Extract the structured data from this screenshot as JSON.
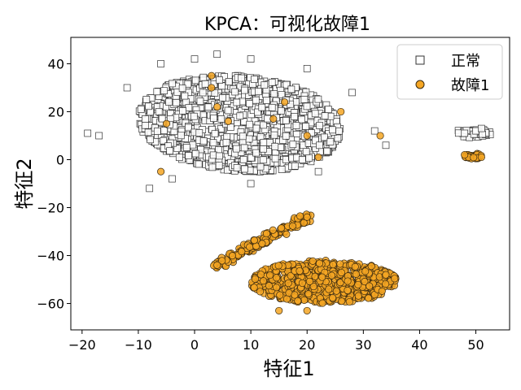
{
  "chart_data": {
    "type": "scatter",
    "title": "KPCA：可视化故障1",
    "xlabel": "特征1",
    "ylabel": "特征2",
    "xlim": [
      -22,
      56
    ],
    "ylim": [
      -71,
      51
    ],
    "xticks": [
      -20,
      -10,
      0,
      10,
      20,
      30,
      40,
      50
    ],
    "yticks": [
      -60,
      -40,
      -20,
      0,
      20,
      40
    ],
    "grid": false,
    "legend_position": "top-right",
    "series": [
      {
        "name": "正常",
        "marker": "square",
        "face_color": "#ffffff",
        "edge_color": "#333333",
        "clusters": [
          {
            "cx": 8,
            "cy": 15,
            "rx": 18,
            "ry": 20,
            "count": 1400,
            "shape": "blob"
          },
          {
            "cx": 49.5,
            "cy": 11,
            "rx": 3.2,
            "ry": 2.0,
            "count": 45,
            "shape": "ellipse"
          }
        ],
        "sample_points": [
          [
            -19,
            11
          ],
          [
            -17,
            10
          ],
          [
            -12,
            30
          ],
          [
            -6,
            40
          ],
          [
            0,
            42
          ],
          [
            4,
            44
          ],
          [
            10,
            42
          ],
          [
            20,
            38
          ],
          [
            28,
            28
          ],
          [
            32,
            12
          ],
          [
            34,
            6
          ],
          [
            -4,
            -8
          ],
          [
            10,
            -10
          ],
          [
            22,
            -5
          ],
          [
            -8,
            -12
          ],
          [
            48,
            11
          ],
          [
            50,
            12
          ],
          [
            51,
            13
          ]
        ]
      },
      {
        "name": "故障1",
        "marker": "circle",
        "face_color": "#f5a623",
        "edge_color": "#3a2a10",
        "clusters": [
          {
            "cx": 23,
            "cy": -51,
            "rx": 13,
            "ry": 9,
            "count": 650,
            "shape": "ellipse"
          },
          {
            "x0": 4,
            "y0": -44,
            "x1": 20,
            "y1": -24,
            "count": 180,
            "shape": "band"
          },
          {
            "cx": 49.5,
            "cy": 1.5,
            "rx": 1.5,
            "ry": 1.2,
            "count": 30,
            "shape": "ellipse"
          }
        ],
        "sample_points": [
          [
            3,
            30
          ],
          [
            3,
            35
          ],
          [
            14,
            17
          ],
          [
            16,
            24
          ],
          [
            4,
            22
          ],
          [
            -5,
            15
          ],
          [
            6,
            16
          ],
          [
            20,
            10
          ],
          [
            22,
            1
          ],
          [
            26,
            20
          ],
          [
            33,
            10
          ],
          [
            -6,
            -5
          ],
          [
            4,
            -44
          ],
          [
            12,
            -35
          ],
          [
            20,
            -24
          ],
          [
            34,
            -48
          ],
          [
            15,
            -63
          ],
          [
            20,
            -63
          ],
          [
            48,
            2
          ],
          [
            51,
            1
          ]
        ]
      }
    ]
  }
}
